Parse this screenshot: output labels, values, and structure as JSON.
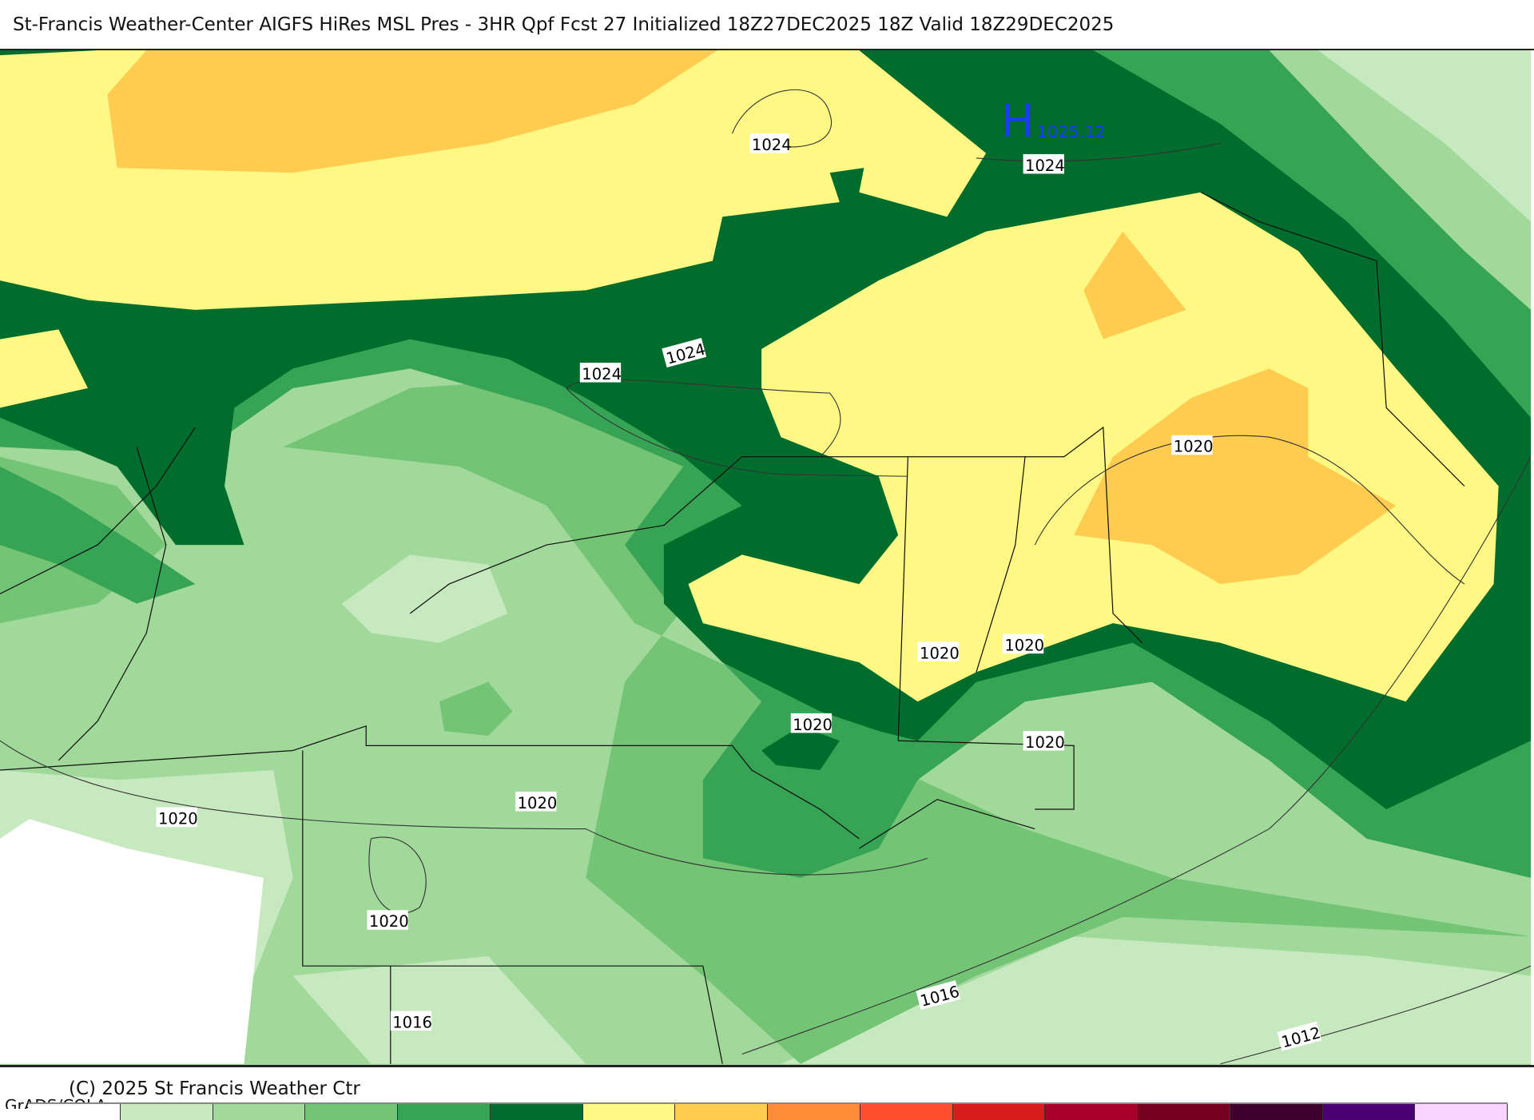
{
  "title": "St-Francis Weather-Center AIGFS HiRes MSL Pres - 3HR Qpf Fcst 27 Initialized 18Z27DEC2025 18Z Valid 18Z29DEC2025",
  "footer": {
    "copyright": "(C) 2025 St Francis Weather Ctr",
    "grads": "GrADS/COLA"
  },
  "high_center": {
    "letter": "H",
    "value": "1025.12",
    "color": "#1a3cff"
  },
  "contour_labels": [
    "1024",
    "1024",
    "1024",
    "1024",
    "1020",
    "1020",
    "1020",
    "1020",
    "1020",
    "1020",
    "1020",
    "1020",
    "1016",
    "1016",
    "1012"
  ],
  "colorbar": {
    "colors": [
      "#ffffff",
      "#c7e9c0",
      "#a1d99b",
      "#74c476",
      "#37a354",
      "#006d2c",
      "#fff885",
      "#ffcc4f",
      "#ff8c38",
      "#ff4f2e",
      "#d91c1c",
      "#a6002a",
      "#75001f",
      "#3f0030",
      "#4b0073",
      "#f8d4ff"
    ]
  }
}
